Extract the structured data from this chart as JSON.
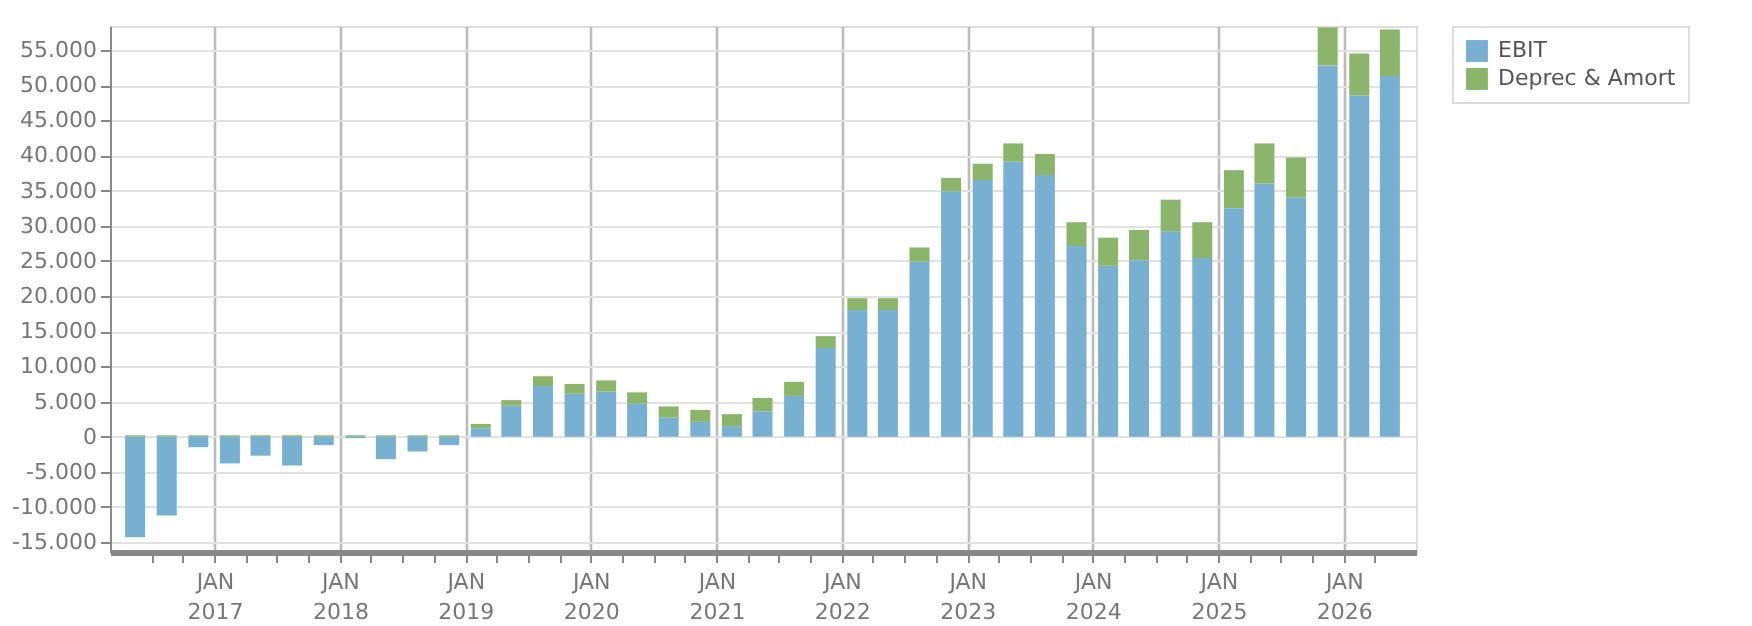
{
  "chart_data": {
    "type": "bar",
    "stacked": true,
    "x": [
      "2016-05-15",
      "2016-08-15",
      "2016-11-15",
      "2017-02-15",
      "2017-05-15",
      "2017-08-15",
      "2017-11-15",
      "2018-02-15",
      "2018-05-15",
      "2018-08-15",
      "2018-11-15",
      "2019-02-15",
      "2019-05-15",
      "2019-08-15",
      "2019-11-15",
      "2020-02-15",
      "2020-05-15",
      "2020-08-15",
      "2020-11-15",
      "2021-02-15",
      "2021-05-15",
      "2021-08-15",
      "2021-11-15",
      "2022-02-15",
      "2022-05-15",
      "2022-08-15",
      "2022-11-15",
      "2023-02-15",
      "2023-05-15",
      "2023-08-15",
      "2023-11-15",
      "2024-02-15",
      "2024-05-15",
      "2024-08-15",
      "2024-11-15",
      "2025-02-15",
      "2025-05-15",
      "2025-08-15",
      "2025-11-15",
      "2026-02-15",
      "2026-05-15"
    ],
    "series": [
      {
        "name": "EBIT",
        "color": "#78b0d2",
        "values": [
          -14300,
          -11200,
          -1500,
          -3800,
          -2700,
          -4100,
          -1200,
          -200,
          -3200,
          -2100,
          -1200,
          1200,
          4400,
          7200,
          6100,
          6400,
          4700,
          2700,
          2100,
          1500,
          3600,
          5800,
          12600,
          18000,
          18000,
          24900,
          34900,
          36500,
          39100,
          37200,
          27100,
          24300,
          25100,
          29200,
          25400,
          32500,
          36000,
          34000,
          52800,
          48500,
          51300
        ]
      },
      {
        "name": "Deprec & Amort",
        "color": "#8ab56a",
        "values": [
          200,
          200,
          200,
          200,
          200,
          200,
          200,
          200,
          200,
          200,
          200,
          600,
          800,
          1400,
          1400,
          1600,
          1600,
          1600,
          1700,
          1700,
          1900,
          2000,
          1700,
          1700,
          1700,
          2000,
          1900,
          2300,
          2600,
          3000,
          3400,
          4000,
          4300,
          4500,
          5100,
          5400,
          5700,
          5700,
          5400,
          6000,
          6600
        ]
      }
    ],
    "xlim": [
      "2016-04-01",
      "2026-07-01"
    ],
    "xticks": [
      {
        "value": "2016-07-01",
        "label": null
      },
      {
        "value": "2016-10-01",
        "label": null
      },
      {
        "value": "2017-01-01",
        "label": "JAN 2017"
      },
      {
        "value": "2017-04-01",
        "label": null
      },
      {
        "value": "2017-07-01",
        "label": null
      },
      {
        "value": "2017-10-01",
        "label": null
      },
      {
        "value": "2018-01-01",
        "label": "JAN 2018"
      },
      {
        "value": "2018-04-01",
        "label": null
      },
      {
        "value": "2018-07-01",
        "label": null
      },
      {
        "value": "2018-10-01",
        "label": null
      },
      {
        "value": "2019-01-01",
        "label": "JAN 2019"
      },
      {
        "value": "2019-04-01",
        "label": null
      },
      {
        "value": "2019-07-01",
        "label": null
      },
      {
        "value": "2019-10-01",
        "label": null
      },
      {
        "value": "2020-01-01",
        "label": "JAN 2020"
      },
      {
        "value": "2020-04-01",
        "label": null
      },
      {
        "value": "2020-07-01",
        "label": null
      },
      {
        "value": "2020-10-01",
        "label": null
      },
      {
        "value": "2021-01-01",
        "label": "JAN 2021"
      },
      {
        "value": "2021-04-01",
        "label": null
      },
      {
        "value": "2021-07-01",
        "label": null
      },
      {
        "value": "2021-10-01",
        "label": null
      },
      {
        "value": "2022-01-01",
        "label": "JAN 2022"
      },
      {
        "value": "2022-04-01",
        "label": null
      },
      {
        "value": "2022-07-01",
        "label": null
      },
      {
        "value": "2022-10-01",
        "label": null
      },
      {
        "value": "2023-01-01",
        "label": "JAN 2023"
      },
      {
        "value": "2023-04-01",
        "label": null
      },
      {
        "value": "2023-07-01",
        "label": null
      },
      {
        "value": "2023-10-01",
        "label": null
      },
      {
        "value": "2024-01-01",
        "label": "JAN 2024"
      },
      {
        "value": "2024-04-01",
        "label": null
      },
      {
        "value": "2024-07-01",
        "label": null
      },
      {
        "value": "2024-10-01",
        "label": null
      },
      {
        "value": "2025-01-01",
        "label": "JAN 2025"
      },
      {
        "value": "2025-04-01",
        "label": null
      },
      {
        "value": "2025-07-01",
        "label": null
      },
      {
        "value": "2025-10-01",
        "label": null
      },
      {
        "value": "2026-01-01",
        "label": "JAN 2026"
      },
      {
        "value": "2026-04-01",
        "label": null
      }
    ],
    "ylim": [
      -16400,
      58400
    ],
    "yticks": [
      {
        "value": -15000,
        "label": "-15.000"
      },
      {
        "value": -10000,
        "label": "-10.000"
      },
      {
        "value": -5000,
        "label": "-5.000"
      },
      {
        "value": 0,
        "label": "0"
      },
      {
        "value": 5000,
        "label": "5.000"
      },
      {
        "value": 10000,
        "label": "10.000"
      },
      {
        "value": 15000,
        "label": "15.000"
      },
      {
        "value": 20000,
        "label": "20.000"
      },
      {
        "value": 25000,
        "label": "25.000"
      },
      {
        "value": 30000,
        "label": "30.000"
      },
      {
        "value": 35000,
        "label": "35.000"
      },
      {
        "value": 40000,
        "label": "40.000"
      },
      {
        "value": 45000,
        "label": "45.000"
      },
      {
        "value": 50000,
        "label": "50.000"
      },
      {
        "value": 55000,
        "label": "55.000"
      }
    ],
    "grid": true,
    "legend": "top right"
  }
}
